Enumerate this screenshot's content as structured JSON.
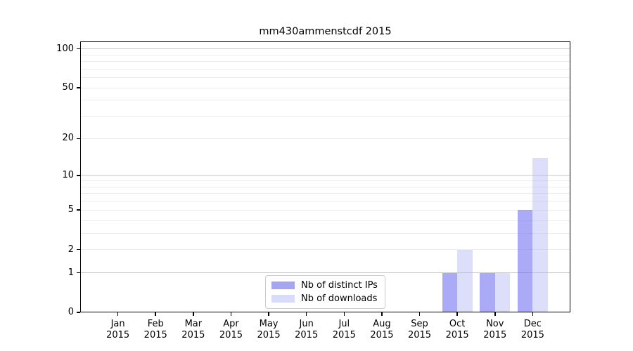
{
  "title": "mm430ammenstcdf 2015",
  "chart_data": {
    "type": "bar",
    "title": "mm430ammenstcdf 2015",
    "year": "2015",
    "months": [
      "Jan",
      "Feb",
      "Mar",
      "Apr",
      "May",
      "Jun",
      "Jul",
      "Aug",
      "Sep",
      "Oct",
      "Nov",
      "Dec"
    ],
    "categories": [
      "Jan 2015",
      "Feb 2015",
      "Mar 2015",
      "Apr 2015",
      "May 2015",
      "Jun 2015",
      "Jul 2015",
      "Aug 2015",
      "Sep 2015",
      "Oct 2015",
      "Nov 2015",
      "Dec 2015"
    ],
    "series": [
      {
        "name": "Nb of distinct IPs",
        "color": "rgba(100,100,240,0.55)",
        "legend_color": "#a4a6f2",
        "values": [
          0,
          0,
          0,
          0,
          0,
          0,
          0,
          0,
          0,
          1,
          1,
          5
        ]
      },
      {
        "name": "Nb of downloads",
        "color": "rgba(180,185,245,0.45)",
        "legend_color": "#d9dbfa",
        "values": [
          0,
          0,
          0,
          0,
          0,
          0,
          0,
          0,
          0,
          2,
          1,
          14
        ]
      }
    ],
    "xlabel": "",
    "ylabel": "",
    "yscale": "log1p",
    "ylim": [
      0,
      114
    ],
    "yticks": [
      0,
      1,
      2,
      5,
      10,
      20,
      50,
      100
    ],
    "ygrid_major": [
      1,
      10,
      100
    ],
    "ygrid_minor": [
      2,
      3,
      4,
      5,
      6,
      7,
      8,
      9,
      20,
      30,
      40,
      50,
      60,
      70,
      80,
      90
    ],
    "grid_color_major": "#c8c8c8",
    "grid_color_minor": "#ebebeb",
    "legend_position": "lower center",
    "grid": "on"
  }
}
